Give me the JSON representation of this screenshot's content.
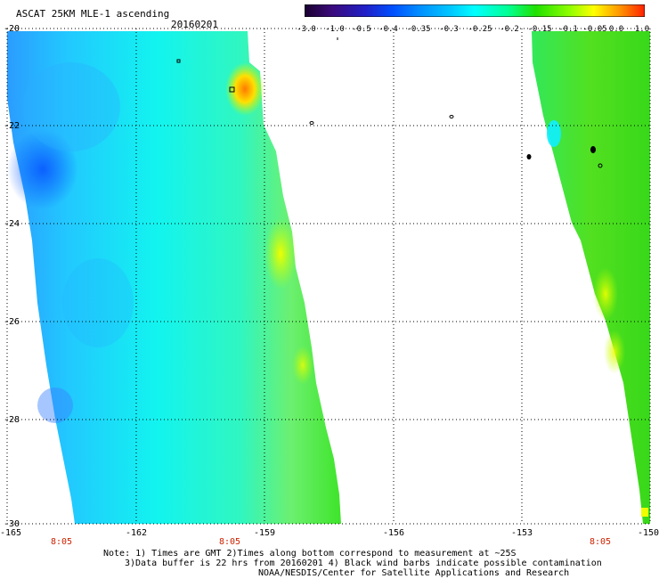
{
  "header": {
    "title": "ASCAT 25KM MLE-1 ascending",
    "date": "20160201"
  },
  "colorbar": {
    "tick_labels": [
      "-3.0",
      "-1.0",
      "-0.5",
      "-0.4",
      "-0.35",
      "-0.3",
      "-0.25",
      "-0.2",
      "-0.15",
      "-0.1",
      "-0.05",
      "0.0",
      "1.0"
    ],
    "colors": [
      "#1a0030",
      "#3a0a7a",
      "#2020c8",
      "#0050ff",
      "#0090ff",
      "#00c8ff",
      "#00ffff",
      "#00ff90",
      "#20e000",
      "#90ff00",
      "#ffff00",
      "#ff9000",
      "#ff2000"
    ]
  },
  "axes": {
    "lat_labels": [
      "-20",
      "-22",
      "-24",
      "-26",
      "-28",
      "-30"
    ],
    "lon_labels": [
      "-165",
      "-162",
      "-159",
      "-156",
      "-153",
      "-150"
    ]
  },
  "time_labels": [
    "8:05",
    "8:05",
    "8:05"
  ],
  "notes": {
    "line1": "Note: 1) Times are GMT 2)Times along bottom correspond to measurement at ~25S",
    "line2": "3)Data buffer is 22 hrs from 20160201 4) Black wind barbs indicate possible contamination",
    "line3": "NOAA/NESDIS/Center for Satellite Applications and Research"
  },
  "colors": {
    "time_red": "#cc2200",
    "grid": "#000000"
  }
}
